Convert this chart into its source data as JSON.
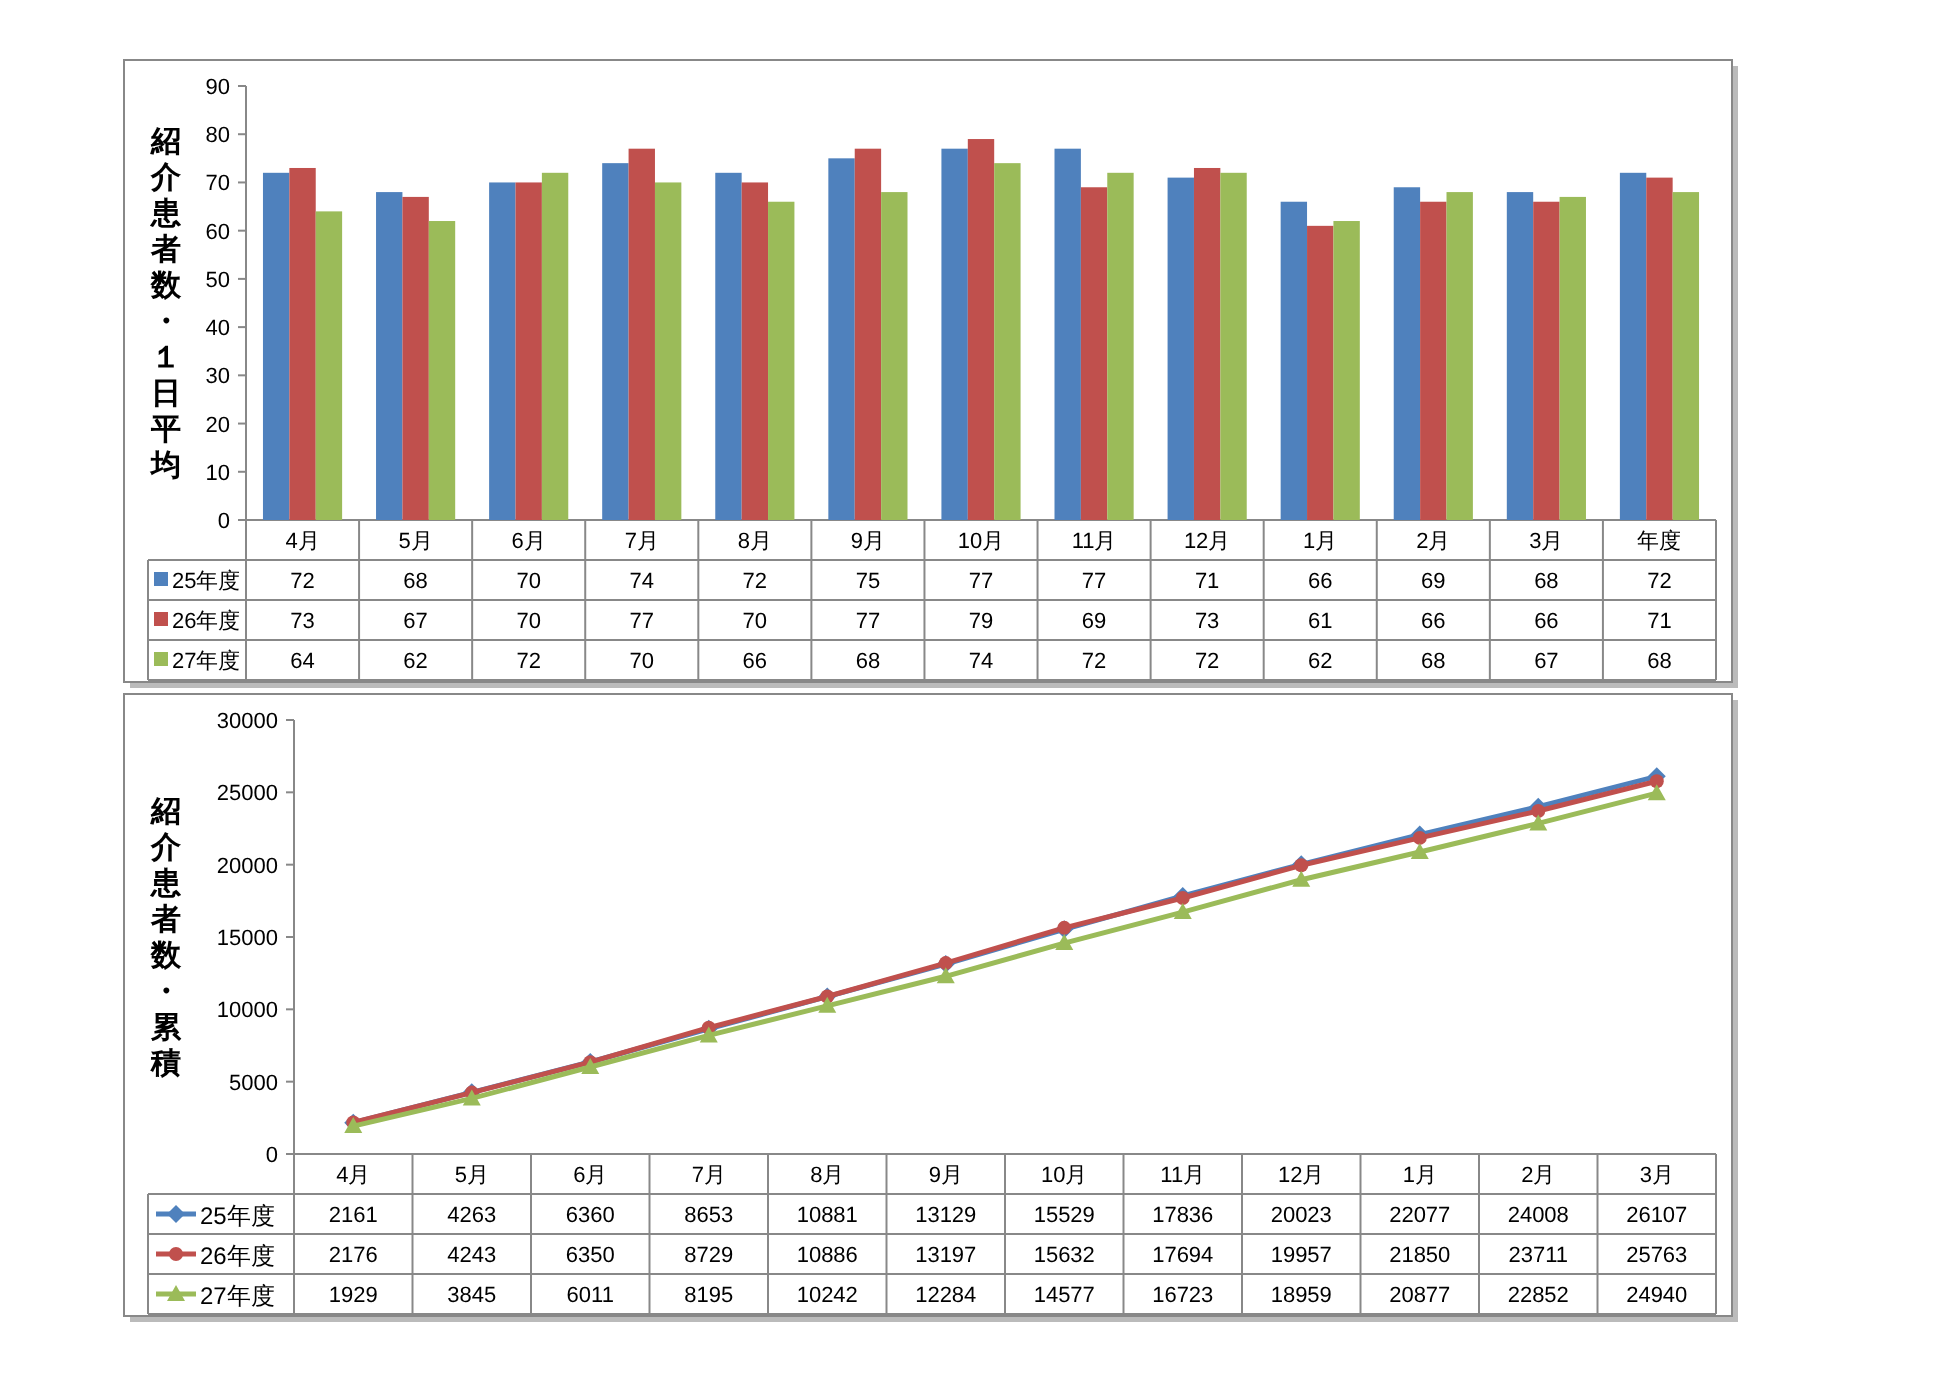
{
  "chart_data": [
    {
      "type": "bar",
      "ylabel": "紹介患者数・１日平均",
      "categories": [
        "4月",
        "5月",
        "6月",
        "7月",
        "8月",
        "9月",
        "10月",
        "11月",
        "12月",
        "1月",
        "2月",
        "3月",
        "年度"
      ],
      "ylim": [
        0,
        90
      ],
      "yticks": [
        0,
        10,
        20,
        30,
        40,
        50,
        60,
        70,
        80,
        90
      ],
      "data_labels": true,
      "legend": "bottom",
      "series": [
        {
          "name": "25年度",
          "color": "#4f81bd",
          "values": [
            72,
            68,
            70,
            74,
            72,
            75,
            77,
            77,
            71,
            66,
            69,
            68,
            72
          ]
        },
        {
          "name": "26年度",
          "color": "#c0504d",
          "values": [
            73,
            67,
            70,
            77,
            70,
            77,
            79,
            69,
            73,
            61,
            66,
            66,
            71
          ]
        },
        {
          "name": "27年度",
          "color": "#9bbb59",
          "values": [
            64,
            62,
            72,
            70,
            66,
            68,
            74,
            72,
            72,
            62,
            68,
            67,
            68
          ]
        }
      ]
    },
    {
      "type": "line",
      "ylabel": "紹介患者数・累積",
      "categories": [
        "4月",
        "5月",
        "6月",
        "7月",
        "8月",
        "9月",
        "10月",
        "11月",
        "12月",
        "1月",
        "2月",
        "3月"
      ],
      "ylim": [
        0,
        30000
      ],
      "yticks": [
        0,
        5000,
        10000,
        15000,
        20000,
        25000,
        30000
      ],
      "data_labels": true,
      "legend": "bottom",
      "series": [
        {
          "name": "25年度",
          "color": "#4f81bd",
          "marker": "diamond",
          "values": [
            2161,
            4263,
            6360,
            8653,
            10881,
            13129,
            15529,
            17836,
            20023,
            22077,
            24008,
            26107
          ]
        },
        {
          "name": "26年度",
          "color": "#c0504d",
          "marker": "circle",
          "values": [
            2176,
            4243,
            6350,
            8729,
            10886,
            13197,
            15632,
            17694,
            19957,
            21850,
            23711,
            25763
          ]
        },
        {
          "name": "27年度",
          "color": "#9bbb59",
          "marker": "triangle",
          "values": [
            1929,
            3845,
            6011,
            8195,
            10242,
            12284,
            14577,
            16723,
            18959,
            20877,
            22852,
            24940
          ]
        }
      ]
    }
  ]
}
